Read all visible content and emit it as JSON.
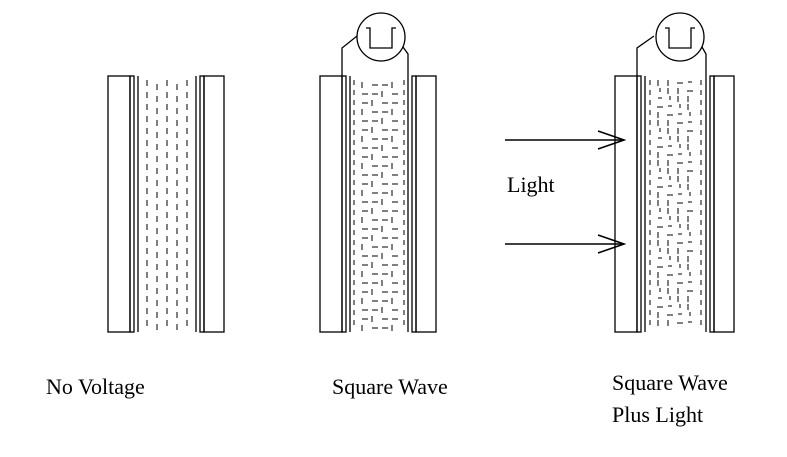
{
  "panels": [
    {
      "label": "No Voltage",
      "has_source": false,
      "light": false
    },
    {
      "label": "Square Wave",
      "has_source": true,
      "light": false
    },
    {
      "label_line1": "Square Wave",
      "label_line2": "Plus Light",
      "has_source": true,
      "light": true
    }
  ],
  "light_label": "Light",
  "colors": {
    "stroke": "#000000",
    "background": "#ffffff"
  }
}
